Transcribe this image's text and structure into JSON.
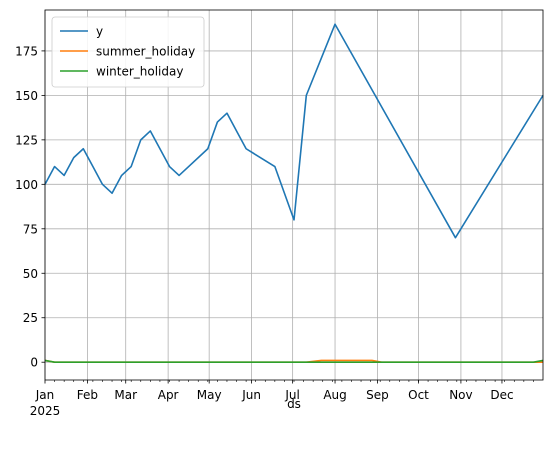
{
  "chart_data": {
    "type": "line",
    "title": "",
    "xlabel": "ds",
    "ylabel": "",
    "ylim": [
      -10,
      198
    ],
    "xlim": [
      "2025-01-01",
      "2025-12-31"
    ],
    "yticks": [
      0,
      25,
      50,
      75,
      100,
      125,
      150,
      175
    ],
    "xticks": [
      {
        "date": "2025-01-01",
        "label": "Jan",
        "sublabel": "2025"
      },
      {
        "date": "2025-02-01",
        "label": "Feb"
      },
      {
        "date": "2025-03-01",
        "label": "Mar"
      },
      {
        "date": "2025-04-01",
        "label": "Apr"
      },
      {
        "date": "2025-05-01",
        "label": "May"
      },
      {
        "date": "2025-06-01",
        "label": "Jun"
      },
      {
        "date": "2025-07-01",
        "label": "Jul"
      },
      {
        "date": "2025-08-01",
        "label": "Aug"
      },
      {
        "date": "2025-09-01",
        "label": "Sep"
      },
      {
        "date": "2025-10-01",
        "label": "Oct"
      },
      {
        "date": "2025-11-01",
        "label": "Nov"
      },
      {
        "date": "2025-12-01",
        "label": "Dec"
      }
    ],
    "grid": true,
    "legend_position": "top-left",
    "series": [
      {
        "name": "y",
        "color": "#1f77b4",
        "points": [
          [
            "2025-01-01",
            100
          ],
          [
            "2025-01-08",
            110
          ],
          [
            "2025-01-15",
            105
          ],
          [
            "2025-01-22",
            115
          ],
          [
            "2025-01-29",
            120
          ],
          [
            "2025-02-05",
            110
          ],
          [
            "2025-02-12",
            100
          ],
          [
            "2025-02-19",
            95
          ],
          [
            "2025-02-26",
            105
          ],
          [
            "2025-03-05",
            110
          ],
          [
            "2025-03-12",
            125
          ],
          [
            "2025-03-19",
            130
          ],
          [
            "2025-03-26",
            120
          ],
          [
            "2025-04-02",
            110
          ],
          [
            "2025-04-09",
            105
          ],
          [
            "2025-04-16",
            110
          ],
          [
            "2025-04-30",
            120
          ],
          [
            "2025-05-07",
            135
          ],
          [
            "2025-05-14",
            140
          ],
          [
            "2025-05-21",
            130
          ],
          [
            "2025-05-28",
            120
          ],
          [
            "2025-06-18",
            110
          ],
          [
            "2025-07-02",
            80
          ],
          [
            "2025-07-11",
            150
          ],
          [
            "2025-08-01",
            190
          ],
          [
            "2025-10-28",
            70
          ],
          [
            "2025-12-31",
            150
          ]
        ]
      },
      {
        "name": "summer_holiday",
        "color": "#ff7f0e",
        "points": [
          [
            "2025-01-01",
            1
          ],
          [
            "2025-01-08",
            0
          ],
          [
            "2025-07-11",
            0
          ],
          [
            "2025-07-22",
            1
          ],
          [
            "2025-08-28",
            1
          ],
          [
            "2025-09-04",
            0
          ],
          [
            "2025-12-24",
            0
          ],
          [
            "2025-12-31",
            0
          ]
        ]
      },
      {
        "name": "winter_holiday",
        "color": "#2ca02c",
        "points": [
          [
            "2025-01-01",
            1
          ],
          [
            "2025-01-08",
            0
          ],
          [
            "2025-12-24",
            0
          ],
          [
            "2025-12-31",
            1
          ]
        ]
      }
    ]
  }
}
